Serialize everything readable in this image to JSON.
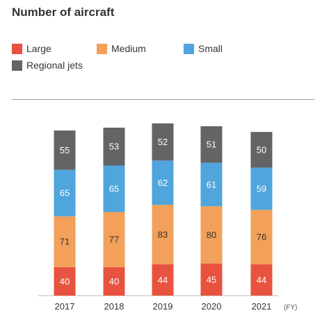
{
  "chart_data": {
    "type": "bar",
    "stacked": true,
    "title": "Number of aircraft",
    "categories": [
      "2017",
      "2018",
      "2019",
      "2020",
      "2021"
    ],
    "x_unit": "(FY)",
    "series": [
      {
        "name": "Large",
        "color": "#e8533f",
        "values": [
          40,
          40,
          44,
          45,
          44
        ]
      },
      {
        "name": "Medium",
        "color": "#f2a05a",
        "values": [
          71,
          77,
          83,
          80,
          76
        ]
      },
      {
        "name": "Small",
        "color": "#4fa5dc",
        "values": [
          65,
          65,
          62,
          61,
          59
        ]
      },
      {
        "name": "Regional jets",
        "color": "#636466",
        "values": [
          55,
          53,
          52,
          51,
          50
        ]
      }
    ],
    "ylim": [
      0,
      245
    ],
    "grid": false,
    "legend_position": "top-left"
  }
}
